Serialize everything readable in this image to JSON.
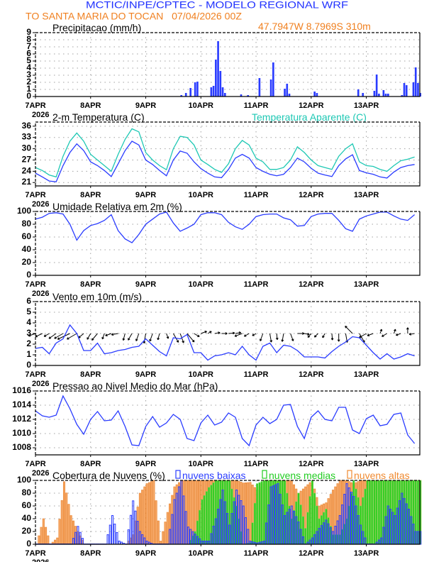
{
  "header": {
    "title": "MCTIC/INPE/CPTEC - MODELO REGIONAL WRF",
    "location_run": "TO SANTA MARIA DO TOCAN   07/04/2026 00Z",
    "coords": "47.7947W 8.7969S 310m"
  },
  "colors": {
    "blue": "#2a3cff",
    "cyan": "#1ec8b4",
    "orange": "#f08a30",
    "green": "#22cc22",
    "grid": "#a0a0a0"
  },
  "xaxis": {
    "days": [
      "7APR",
      "8APR",
      "9APR",
      "10APR",
      "11APR",
      "12APR",
      "13APR"
    ],
    "year": "2026"
  },
  "times": [
    "7APR 00Z",
    "7APR 03Z",
    "7APR 06Z",
    "7APR 09Z",
    "7APR 12Z",
    "7APR 15Z",
    "7APR 18Z",
    "7APR 21Z",
    "8APR 00Z",
    "8APR 03Z",
    "8APR 06Z",
    "8APR 09Z",
    "8APR 12Z",
    "8APR 15Z",
    "8APR 18Z",
    "8APR 21Z",
    "9APR 00Z",
    "9APR 03Z",
    "9APR 06Z",
    "9APR 09Z",
    "9APR 12Z",
    "9APR 15Z",
    "9APR 18Z",
    "9APR 21Z",
    "10APR 00Z",
    "10APR 03Z",
    "10APR 06Z",
    "10APR 09Z",
    "10APR 12Z",
    "10APR 15Z",
    "10APR 18Z",
    "10APR 21Z",
    "11APR 00Z",
    "11APR 03Z",
    "11APR 06Z",
    "11APR 09Z",
    "11APR 12Z",
    "11APR 15Z",
    "11APR 18Z",
    "11APR 21Z",
    "12APR 00Z",
    "12APR 03Z",
    "12APR 06Z",
    "12APR 09Z",
    "12APR 12Z",
    "12APR 15Z",
    "12APR 18Z",
    "12APR 21Z",
    "13APR 00Z",
    "13APR 03Z",
    "13APR 06Z",
    "13APR 09Z",
    "13APR 12Z",
    "13APR 15Z",
    "13APR 18Z",
    "13APR 21Z"
  ],
  "chart_data": [
    {
      "type": "bar",
      "title": "Precipitacao (mm/h)",
      "ylim": [
        0,
        9
      ],
      "yticks": [
        "0",
        "1",
        "2",
        "3",
        "4",
        "5",
        "6",
        "7",
        "8",
        "9"
      ],
      "grid": true,
      "bars": [
        [
          "9APR 15Z",
          0.2
        ],
        [
          "9APR 17Z",
          0.5
        ],
        [
          "9APR 19Z",
          1.2
        ],
        [
          "9APR 21Z",
          2.0
        ],
        [
          "9APR 22Z",
          2.1
        ],
        [
          "10APR 04Z",
          1.3
        ],
        [
          "10APR 05Z",
          1.5
        ],
        [
          "10APR 06Z",
          5.2
        ],
        [
          "10APR 07Z",
          7.8
        ],
        [
          "10APR 08Z",
          3.6
        ],
        [
          "10APR 09Z",
          1.3
        ],
        [
          "10APR 10Z",
          0.5
        ],
        [
          "10APR 17Z",
          0.3
        ],
        [
          "10APR 20Z",
          0.2
        ],
        [
          "11APR 01Z",
          2.6
        ],
        [
          "11APR 06Z",
          2.4
        ],
        [
          "11APR 07Z",
          4.8
        ],
        [
          "11APR 12Z",
          1.1
        ],
        [
          "11APR 13Z",
          1.8
        ],
        [
          "11APR 14Z",
          0.4
        ],
        [
          "12APR 01Z",
          0.7
        ],
        [
          "12APR 02Z",
          0.5
        ],
        [
          "12APR 20Z",
          1.0
        ],
        [
          "12APR 22Z",
          0.5
        ],
        [
          "13APR 03Z",
          0.8
        ],
        [
          "13APR 04Z",
          3.1
        ],
        [
          "13APR 05Z",
          0.4
        ],
        [
          "13APR 07Z",
          0.9
        ],
        [
          "13APR 08Z",
          0.4
        ],
        [
          "13APR 09Z",
          0.4
        ],
        [
          "13APR 15Z",
          0.2
        ],
        [
          "13APR 16Z",
          1.9
        ],
        [
          "13APR 17Z",
          1.6
        ],
        [
          "13APR 20Z",
          2.0
        ],
        [
          "13APR 21Z",
          4.1
        ],
        [
          "13APR 22Z",
          1.9
        ],
        [
          "13APR 23Z",
          0.5
        ]
      ]
    },
    {
      "type": "line",
      "title": "2-m Temperatura (C)",
      "ylim": [
        20.1,
        37.1
      ],
      "yticks": [
        "21",
        "24",
        "27",
        "30",
        "33",
        "36"
      ],
      "grid": true,
      "series": [
        {
          "name": "2-m Temperatura (C)",
          "color": "#2a3cff",
          "values": [
            23.5,
            22.5,
            21.4,
            21.2,
            25.5,
            29,
            31.3,
            29.5,
            26.5,
            25.5,
            24.2,
            22.6,
            26,
            29.5,
            32,
            31,
            27,
            25.8,
            24.2,
            22.8,
            27,
            29.4,
            28.8,
            26.5,
            24.7,
            23.5,
            22.5,
            22.3,
            24.5,
            27.5,
            28.5,
            27.5,
            25,
            24,
            23.2,
            22.8,
            23.2,
            25,
            27.5,
            26.5,
            24.8,
            23.5,
            23,
            22.6,
            25.5,
            27.3,
            28.4,
            24.2,
            23.6,
            23.2,
            22.5,
            22.2,
            23.8,
            25,
            25.5,
            25.8
          ]
        },
        {
          "name": "Temperatura Aparente (C)",
          "color": "#1ec8b4",
          "values": [
            25,
            24.2,
            23,
            22.5,
            28,
            32,
            34.2,
            32,
            28.5,
            27,
            25.5,
            24,
            28.5,
            32.5,
            35.3,
            34.5,
            29,
            27,
            25.5,
            24.4,
            30,
            33.3,
            33,
            31,
            27,
            25.8,
            24.5,
            23.7,
            26,
            30,
            32.2,
            31,
            27.5,
            26.5,
            24.5,
            24.5,
            25,
            27,
            30.5,
            29,
            27,
            25.5,
            25,
            24.5,
            28,
            30,
            31.3,
            26.5,
            25.5,
            25.3,
            24.5,
            24,
            25.5,
            26.8,
            27.2,
            27.8
          ]
        }
      ]
    },
    {
      "type": "line",
      "title": "Umidade Relativa em 2m (%)",
      "ylim": [
        0,
        100
      ],
      "yticks": [
        "0",
        "20",
        "40",
        "60",
        "80",
        "100"
      ],
      "grid": true,
      "series": [
        {
          "color": "#2a3cff",
          "values": [
            88,
            91,
            97,
            98,
            96,
            80,
            55,
            70,
            78,
            81,
            86,
            95,
            70,
            57,
            51,
            64,
            80,
            88,
            96,
            99,
            82,
            69,
            74,
            80,
            95,
            98,
            98,
            95,
            83,
            76,
            72,
            80,
            92,
            95,
            96,
            96,
            90,
            87,
            77,
            78,
            92,
            96,
            97,
            97,
            86,
            73,
            69,
            88,
            93,
            96,
            99,
            99,
            93,
            88,
            86,
            95
          ]
        }
      ]
    },
    {
      "type": "line",
      "title": "Vento em 10m (m/s)",
      "ylim": [
        0,
        6
      ],
      "yticks": [
        "0",
        "1",
        "2",
        "3",
        "4",
        "5",
        "6"
      ],
      "grid": true,
      "series": [
        {
          "color": "#2a3cff",
          "values": [
            1.6,
            1.7,
            1.1,
            2.1,
            2.5,
            3.8,
            3.0,
            1.4,
            1.4,
            2.1,
            1.1,
            1.2,
            1.4,
            1.5,
            1.7,
            1.8,
            2.5,
            1.9,
            1.3,
            0.9,
            2.6,
            2.5,
            2.9,
            1.2,
            1.2,
            0.5,
            0.9,
            1.0,
            1.2,
            1.0,
            1.8,
            1.0,
            0.5,
            1.8,
            2.1,
            1.2,
            1.9,
            1.8,
            1.4,
            0.8,
            0.8,
            0.8,
            0.7,
            1.3,
            1.8,
            2.2,
            2.7,
            2.6,
            1.9,
            1.2,
            0.6,
            1.1,
            0.6,
            0.8,
            1.1,
            0.9
          ]
        }
      ],
      "wind_direction_from_deg": [
        70,
        65,
        60,
        55,
        60,
        65,
        60,
        50,
        30,
        40,
        20,
        70,
        80,
        15,
        30,
        20,
        10,
        20,
        15,
        340,
        330,
        340,
        320,
        300,
        250,
        240,
        260,
        270,
        265,
        260,
        70,
        60,
        60,
        20,
        350,
        355,
        10,
        340,
        270,
        280,
        40,
        45,
        30,
        355,
        0,
        350,
        135,
        330,
        60,
        70,
        200,
        60,
        200,
        70,
        180,
        80
      ]
    },
    {
      "type": "line",
      "title": "Pressao ao Nivel Medio do Mar (hPa)",
      "ylim": [
        1007,
        1016
      ],
      "yticks": [
        "1008",
        "1010",
        "1012",
        "1014",
        "1016"
      ],
      "grid": true,
      "series": [
        {
          "color": "#2a3cff",
          "values": [
            1013.2,
            1012.5,
            1012.3,
            1012.6,
            1015.3,
            1013.5,
            1011.3,
            1009.9,
            1012.0,
            1013.1,
            1011.8,
            1011.9,
            1013.2,
            1011.0,
            1008.4,
            1008.3,
            1011.0,
            1012.4,
            1010.9,
            1011.5,
            1012.7,
            1012.0,
            1009.3,
            1009.0,
            1011.5,
            1012.6,
            1011.2,
            1011.6,
            1012.9,
            1012.3,
            1009.3,
            1008.3,
            1011.2,
            1012.3,
            1011.4,
            1012.0,
            1014.0,
            1014.1,
            1011.0,
            1009.3,
            1012.3,
            1013.2,
            1012.0,
            1011.8,
            1013.7,
            1013.7,
            1010.5,
            1010.0,
            1012.1,
            1012.6,
            1011.1,
            1011.3,
            1012.7,
            1012.9,
            1009.8,
            1008.6
          ]
        }
      ]
    },
    {
      "type": "bar",
      "title": "Cobertura de Nuvens (%)",
      "ylim": [
        0,
        100
      ],
      "yticks": [
        "0",
        "20",
        "40",
        "60",
        "80",
        "100"
      ],
      "grid": true,
      "legend": "top",
      "series": [
        {
          "name": "nuvens altas",
          "color": "#f08a30",
          "values": [
            0,
            40,
            0,
            10,
            98,
            45,
            20,
            0,
            0,
            0,
            0,
            0,
            0,
            0,
            15,
            80,
            95,
            100,
            5,
            50,
            90,
            100,
            100,
            100,
            100,
            100,
            100,
            100,
            100,
            100,
            96,
            97,
            85,
            100,
            100,
            100,
            100,
            100,
            80,
            90,
            100,
            60,
            65,
            85,
            100,
            100,
            95,
            100,
            100,
            100,
            100,
            100,
            100,
            100,
            100,
            100
          ]
        },
        {
          "name": "nuvens medias",
          "color": "#22cc22",
          "values": [
            0,
            0,
            0,
            0,
            0,
            0,
            0,
            0,
            0,
            0,
            0,
            0,
            0,
            0,
            0,
            0,
            0,
            0,
            0,
            0,
            0,
            0,
            0,
            20,
            70,
            89,
            100,
            100,
            100,
            60,
            0,
            3,
            95,
            100,
            100,
            100,
            100,
            40,
            80,
            25,
            100,
            40,
            55,
            15,
            15,
            40,
            100,
            60,
            100,
            100,
            100,
            100,
            100,
            100,
            100,
            100
          ]
        },
        {
          "name": "nuvens baixas",
          "color": "#2a3cff",
          "values": [
            0,
            0,
            0,
            0,
            0,
            0,
            28,
            0,
            0,
            0,
            0,
            45,
            5,
            0,
            68,
            20,
            5,
            0,
            0,
            0,
            70,
            100,
            27,
            16,
            5,
            5,
            40,
            85,
            30,
            85,
            60,
            5,
            2,
            5,
            90,
            95,
            45,
            60,
            35,
            0,
            10,
            25,
            38,
            20,
            45,
            95,
            75,
            30,
            0,
            0,
            10,
            60,
            45,
            80,
            55,
            20
          ]
        }
      ]
    }
  ]
}
